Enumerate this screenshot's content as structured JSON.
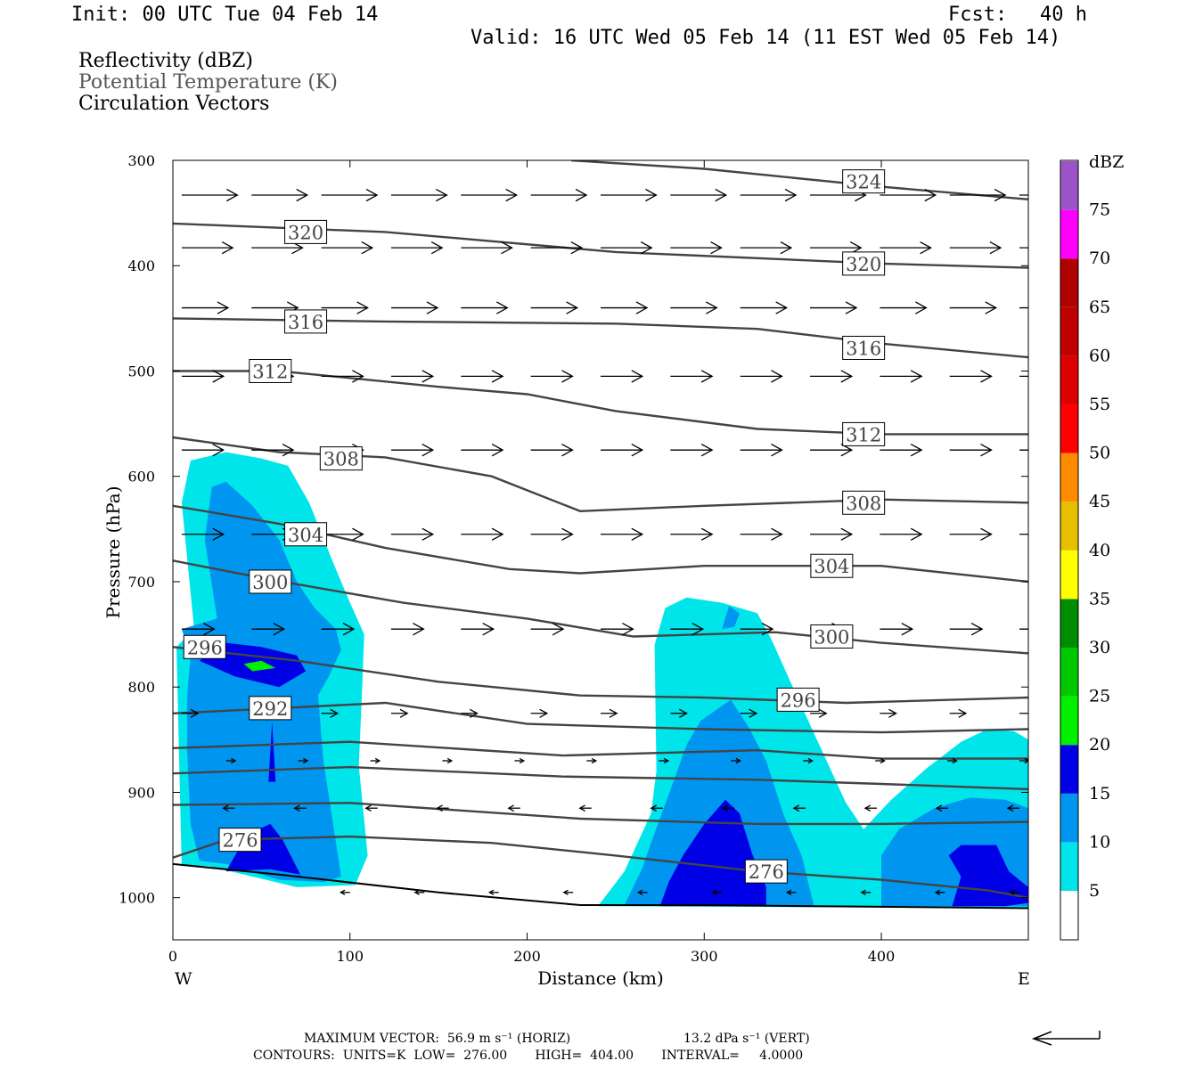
{
  "header": {
    "init": "Init: 00 UTC Tue 04 Feb 14",
    "fcst_label": "Fcst:",
    "fcst_value": "40 h",
    "valid": "Valid: 16 UTC Wed 05 Feb 14 (11 EST Wed 05 Feb 14)"
  },
  "fields": {
    "reflectivity": "Reflectivity (dBZ)",
    "theta": "Potential Temperature (K)",
    "vectors": "Circulation Vectors"
  },
  "footer": {
    "max_vector": "MAXIMUM VECTOR:  56.9 m s⁻¹ (HORIZ)",
    "max_vector_vert": "13.2 dPa s⁻¹ (VERT)",
    "contours": "CONTOURS:  UNITS=K  LOW=  276.00       HIGH=  404.00       INTERVAL=     4.0000"
  },
  "colors": {
    "c5": "#00e5ea",
    "c10": "#0096f0",
    "c15": "#0000e6",
    "c20": "#00f000",
    "c25": "#00c800",
    "c30": "#008c00",
    "c35": "#ffff00",
    "c40": "#e6c000",
    "c45": "#ff8c00",
    "c50": "#ff0000",
    "c55": "#dc0000",
    "c60": "#c00000",
    "c65": "#b00000",
    "c70": "#ff00ff",
    "c75": "#9c55c8",
    "contour": "#444444"
  },
  "chart_data": {
    "type": "contour-cross-section",
    "xlabel": "Distance (km)",
    "ylabel": "Pressure (hPa)",
    "xlim": [
      0,
      483
    ],
    "ylim": [
      1040,
      300
    ],
    "x_ticks": [
      0,
      100,
      200,
      300,
      400
    ],
    "y_ticks": [
      300,
      400,
      500,
      600,
      700,
      800,
      900,
      1000
    ],
    "x_left_label": "W",
    "x_right_label": "E",
    "colorbar_title": "dBZ",
    "colorbar_levels": [
      5,
      10,
      15,
      20,
      25,
      30,
      35,
      40,
      45,
      50,
      55,
      60,
      65,
      70,
      75
    ],
    "theta_contours": [
      {
        "label": "324",
        "points": [
          [
            225,
            300
          ],
          [
            300,
            308
          ],
          [
            400,
            325
          ],
          [
            483,
            337
          ]
        ],
        "label_at": [
          390,
          320
        ]
      },
      {
        "label": "320",
        "points": [
          [
            0,
            360
          ],
          [
            120,
            368
          ],
          [
            250,
            387
          ],
          [
            400,
            398
          ],
          [
            483,
            402
          ]
        ],
        "label_at": [
          75,
          368
        ],
        "label2_at": [
          390,
          398
        ]
      },
      {
        "label": "316",
        "points": [
          [
            0,
            450
          ],
          [
            120,
            453
          ],
          [
            250,
            455
          ],
          [
            330,
            460
          ],
          [
            400,
            474
          ],
          [
            483,
            487
          ]
        ],
        "label_at": [
          75,
          453
        ],
        "label2_at": [
          390,
          478
        ]
      },
      {
        "label": "312",
        "points": [
          [
            0,
            500
          ],
          [
            60,
            500
          ],
          [
            150,
            515
          ],
          [
            200,
            522
          ],
          [
            250,
            538
          ],
          [
            330,
            555
          ],
          [
            400,
            560
          ],
          [
            483,
            560
          ]
        ],
        "label_at": [
          55,
          500
        ],
        "label2_at": [
          390,
          560
        ]
      },
      {
        "label": "308",
        "points": [
          [
            0,
            563
          ],
          [
            60,
            577
          ],
          [
            120,
            582
          ],
          [
            180,
            600
          ],
          [
            230,
            633
          ],
          [
            300,
            628
          ],
          [
            400,
            622
          ],
          [
            483,
            625
          ]
        ],
        "label_at": [
          95,
          583
        ],
        "label2_at": [
          390,
          625
        ]
      },
      {
        "label": "304",
        "points": [
          [
            0,
            628
          ],
          [
            60,
            645
          ],
          [
            120,
            668
          ],
          [
            190,
            688
          ],
          [
            230,
            692
          ],
          [
            300,
            685
          ],
          [
            400,
            685
          ],
          [
            483,
            700
          ]
        ],
        "label_at": [
          75,
          655
        ],
        "label2_at": [
          372,
          685
        ]
      },
      {
        "label": "300",
        "points": [
          [
            0,
            680
          ],
          [
            55,
            698
          ],
          [
            130,
            720
          ],
          [
            200,
            735
          ],
          [
            260,
            752
          ],
          [
            340,
            748
          ],
          [
            400,
            758
          ],
          [
            483,
            768
          ]
        ],
        "label_at": [
          55,
          700
        ],
        "label2_at": [
          372,
          752
        ]
      },
      {
        "label": "296",
        "points": [
          [
            0,
            762
          ],
          [
            70,
            775
          ],
          [
            150,
            795
          ],
          [
            230,
            808
          ],
          [
            300,
            810
          ],
          [
            380,
            815
          ],
          [
            483,
            810
          ]
        ],
        "label_at": [
          18,
          762
        ],
        "label2_at": [
          353,
          812
        ]
      },
      {
        "label": "292",
        "points": [
          [
            0,
            825
          ],
          [
            60,
            820
          ],
          [
            120,
            815
          ],
          [
            200,
            835
          ],
          [
            300,
            840
          ],
          [
            400,
            843
          ],
          [
            483,
            840
          ]
        ],
        "label_at": [
          55,
          820
        ]
      },
      {
        "points": [
          [
            0,
            858
          ],
          [
            100,
            852
          ],
          [
            220,
            865
          ],
          [
            330,
            860
          ],
          [
            400,
            868
          ],
          [
            483,
            868
          ]
        ]
      },
      {
        "points": [
          [
            0,
            882
          ],
          [
            100,
            876
          ],
          [
            220,
            885
          ],
          [
            330,
            888
          ],
          [
            400,
            892
          ],
          [
            483,
            897
          ]
        ]
      },
      {
        "points": [
          [
            0,
            912
          ],
          [
            100,
            910
          ],
          [
            230,
            925
          ],
          [
            330,
            930
          ],
          [
            400,
            930
          ],
          [
            483,
            928
          ]
        ]
      },
      {
        "label": "276",
        "points": [
          [
            0,
            962
          ],
          [
            30,
            945
          ],
          [
            100,
            942
          ],
          [
            180,
            948
          ],
          [
            250,
            960
          ],
          [
            330,
            975
          ],
          [
            400,
            983
          ],
          [
            460,
            993
          ],
          [
            483,
            1000
          ]
        ],
        "label_at": [
          38,
          945
        ],
        "label2_at": [
          335,
          975
        ]
      }
    ],
    "terrain": [
      [
        0,
        968
      ],
      [
        60,
        978
      ],
      [
        150,
        995
      ],
      [
        230,
        1007
      ],
      [
        300,
        1007
      ],
      [
        483,
        1010
      ]
    ],
    "reflectivity_polygons": [
      {
        "level": 5,
        "points": [
          [
            5,
            970
          ],
          [
            2,
            762
          ],
          [
            12,
            745
          ],
          [
            5,
            625
          ],
          [
            10,
            585
          ],
          [
            30,
            577
          ],
          [
            50,
            583
          ],
          [
            65,
            590
          ],
          [
            77,
            625
          ],
          [
            90,
            680
          ],
          [
            100,
            720
          ],
          [
            108,
            750
          ],
          [
            107,
            795
          ],
          [
            105,
            875
          ],
          [
            110,
            960
          ],
          [
            103,
            988
          ],
          [
            70,
            990
          ],
          [
            20,
            970
          ]
        ]
      },
      {
        "level": 10,
        "points": [
          [
            15,
            965
          ],
          [
            10,
            930
          ],
          [
            8,
            860
          ],
          [
            8,
            810
          ],
          [
            10,
            770
          ],
          [
            5,
            745
          ],
          [
            25,
            735
          ],
          [
            18,
            660
          ],
          [
            22,
            610
          ],
          [
            30,
            605
          ],
          [
            45,
            628
          ],
          [
            60,
            660
          ],
          [
            70,
            700
          ],
          [
            80,
            725
          ],
          [
            92,
            745
          ],
          [
            95,
            765
          ],
          [
            88,
            790
          ],
          [
            82,
            808
          ],
          [
            85,
            870
          ],
          [
            90,
            925
          ],
          [
            95,
            980
          ],
          [
            85,
            985
          ],
          [
            60,
            983
          ],
          [
            30,
            968
          ]
        ]
      },
      {
        "level": 15,
        "points": [
          [
            15,
            775
          ],
          [
            30,
            758
          ],
          [
            50,
            762
          ],
          [
            70,
            770
          ],
          [
            75,
            785
          ],
          [
            60,
            800
          ],
          [
            35,
            790
          ]
        ]
      },
      {
        "level": 20,
        "points": [
          [
            40,
            778
          ],
          [
            50,
            775
          ],
          [
            58,
            782
          ],
          [
            45,
            785
          ]
        ]
      },
      {
        "level": 15,
        "points": [
          [
            54,
            890
          ],
          [
            56,
            833
          ],
          [
            58,
            890
          ]
        ]
      },
      {
        "level": 15,
        "points": [
          [
            30,
            975
          ],
          [
            42,
            940
          ],
          [
            55,
            930
          ],
          [
            62,
            945
          ],
          [
            72,
            978
          ],
          [
            55,
            973
          ]
        ]
      },
      {
        "level": 5,
        "points": [
          [
            240,
            1008
          ],
          [
            255,
            975
          ],
          [
            270,
            920
          ],
          [
            273,
            880
          ],
          [
            272,
            760
          ],
          [
            278,
            725
          ],
          [
            290,
            715
          ],
          [
            310,
            720
          ],
          [
            330,
            730
          ],
          [
            338,
            755
          ],
          [
            350,
            800
          ],
          [
            365,
            855
          ],
          [
            380,
            910
          ],
          [
            390,
            935
          ],
          [
            405,
            908
          ],
          [
            425,
            878
          ],
          [
            445,
            852
          ],
          [
            460,
            840
          ],
          [
            475,
            842
          ],
          [
            483,
            850
          ],
          [
            483,
            1010
          ]
        ]
      },
      {
        "level": 10,
        "points": [
          [
            255,
            1007
          ],
          [
            265,
            972
          ],
          [
            270,
            948
          ],
          [
            280,
            902
          ],
          [
            290,
            855
          ],
          [
            298,
            832
          ],
          [
            315,
            812
          ],
          [
            325,
            838
          ],
          [
            335,
            870
          ],
          [
            345,
            922
          ],
          [
            355,
            960
          ],
          [
            362,
            1008
          ]
        ]
      },
      {
        "level": 10,
        "points": [
          [
            310,
            745
          ],
          [
            314,
            723
          ],
          [
            320,
            730
          ],
          [
            317,
            743
          ]
        ]
      },
      {
        "level": 15,
        "points": [
          [
            275,
            1008
          ],
          [
            280,
            985
          ],
          [
            288,
            960
          ],
          [
            300,
            930
          ],
          [
            312,
            907
          ],
          [
            320,
            920
          ],
          [
            327,
            958
          ],
          [
            335,
            990
          ],
          [
            335,
            1008
          ]
        ]
      },
      {
        "level": 10,
        "points": [
          [
            400,
            1008
          ],
          [
            400,
            960
          ],
          [
            410,
            935
          ],
          [
            430,
            915
          ],
          [
            450,
            905
          ],
          [
            470,
            907
          ],
          [
            483,
            915
          ],
          [
            483,
            1008
          ]
        ]
      },
      {
        "level": 15,
        "points": [
          [
            440,
            1008
          ],
          [
            445,
            980
          ],
          [
            438,
            960
          ],
          [
            445,
            950
          ],
          [
            465,
            950
          ],
          [
            472,
            975
          ],
          [
            483,
            990
          ],
          [
            483,
            1005
          ],
          [
            470,
            1008
          ]
        ]
      }
    ],
    "vectors": [
      {
        "p": 333,
        "x0": 5,
        "x1": 478,
        "n": 13,
        "len": 24
      },
      {
        "p": 383,
        "x0": 5,
        "x1": 478,
        "n": 13,
        "len": 22
      },
      {
        "p": 440,
        "x0": 5,
        "x1": 478,
        "n": 13,
        "len": 20
      },
      {
        "p": 505,
        "x0": 5,
        "x1": 478,
        "n": 13,
        "len": 18
      },
      {
        "p": 575,
        "x0": 5,
        "x1": 478,
        "n": 13,
        "len": 18
      },
      {
        "p": 655,
        "x0": 5,
        "x1": 478,
        "n": 13,
        "len": 18
      },
      {
        "p": 745,
        "x0": 5,
        "x1": 478,
        "n": 13,
        "len": 14
      },
      {
        "p": 825,
        "x0": 5,
        "x1": 478,
        "n": 13,
        "len": 7
      },
      {
        "p": 870,
        "x0": 30,
        "x1": 478,
        "n": 12,
        "len": 4
      },
      {
        "p": 915,
        "x0": 35,
        "x1": 478,
        "n": 12,
        "len": -5
      },
      {
        "p": 995,
        "x0": 100,
        "x1": 478,
        "n": 10,
        "len": -4
      }
    ]
  }
}
